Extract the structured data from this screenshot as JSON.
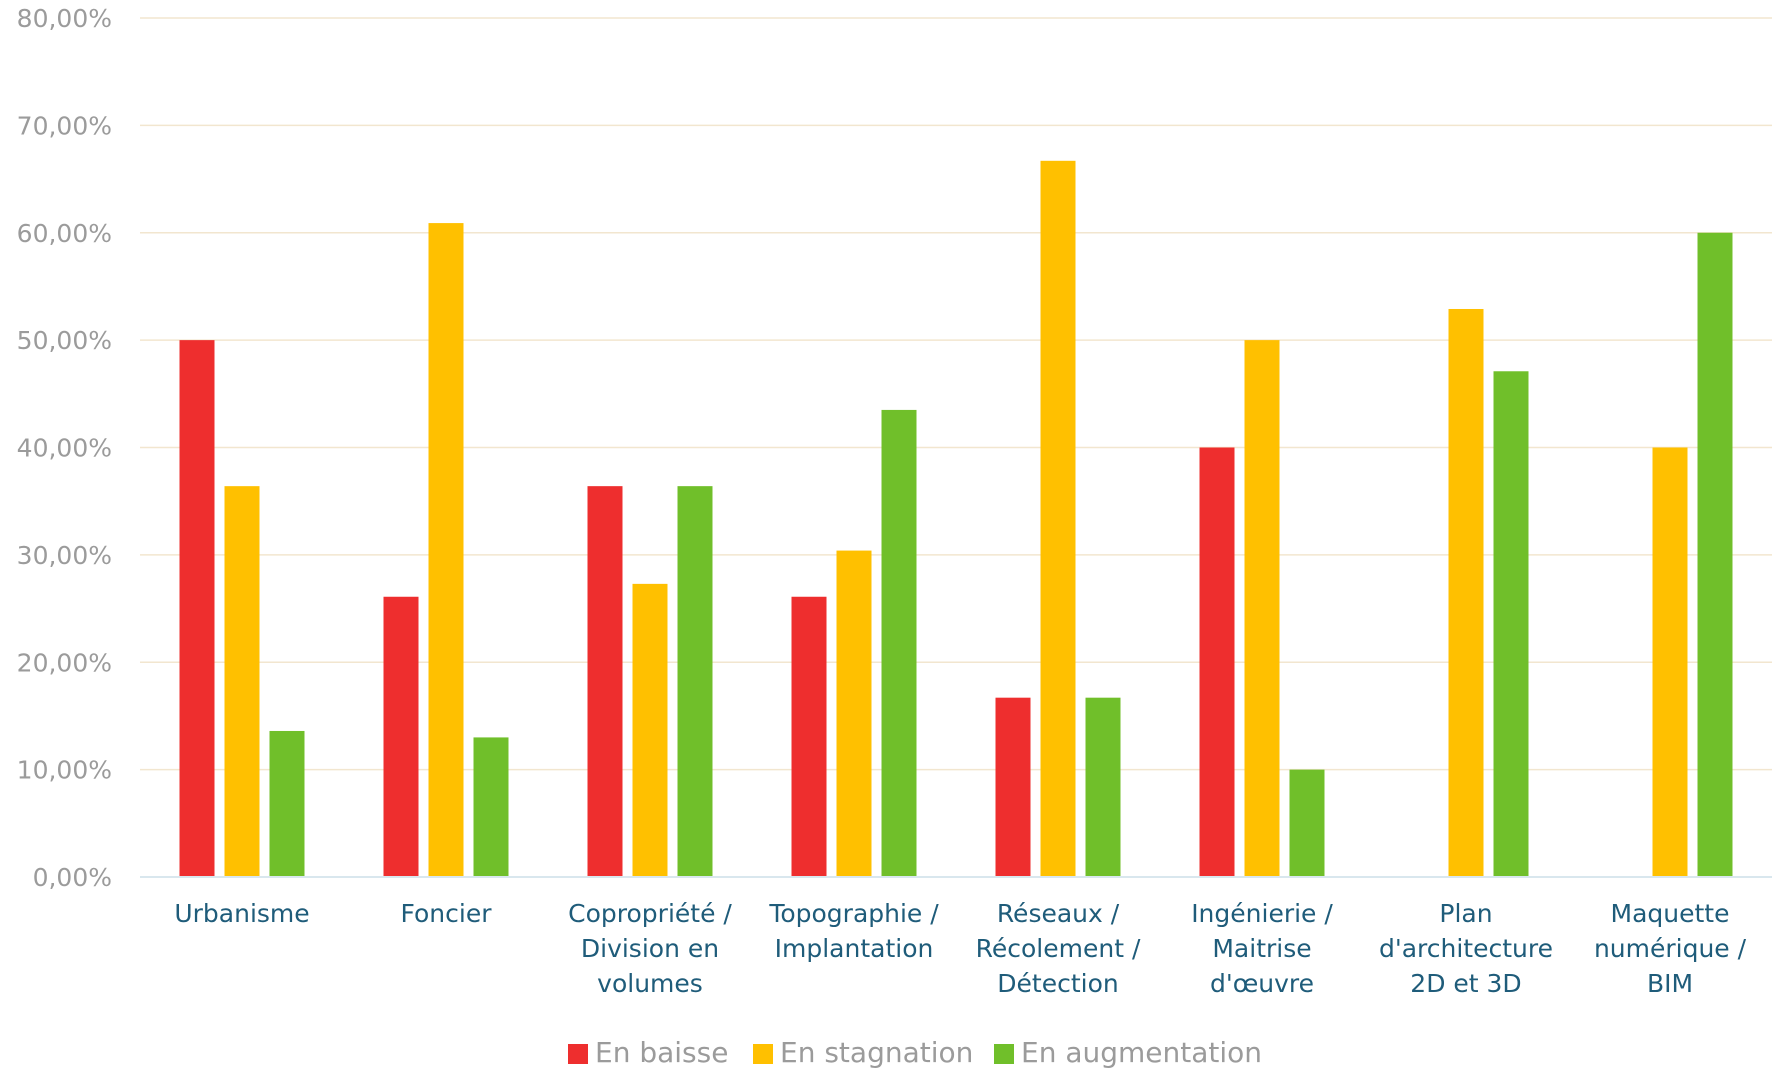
{
  "chart_data": {
    "type": "bar",
    "categories": [
      [
        "Urbanisme"
      ],
      [
        "Foncier"
      ],
      [
        "Copropriété /",
        "Division en",
        "volumes"
      ],
      [
        "Topographie /",
        "Implantation"
      ],
      [
        "Réseaux /",
        "Récolement /",
        "Détection"
      ],
      [
        "Ingénierie /",
        "Maitrise",
        "d'œuvre"
      ],
      [
        "Plan",
        "d'architecture",
        "2D et 3D"
      ],
      [
        "Maquette",
        "numérique /",
        "BIM"
      ]
    ],
    "series": [
      {
        "name": "En baisse",
        "color": "#ee2e2e",
        "values": [
          50.0,
          26.1,
          36.4,
          26.1,
          16.7,
          40.0,
          0,
          0
        ]
      },
      {
        "name": "En stagnation",
        "color": "#ffc000",
        "values": [
          36.4,
          60.9,
          27.3,
          30.4,
          66.7,
          50.0,
          52.9,
          40.0
        ]
      },
      {
        "name": "En augmentation",
        "color": "#70bf2a",
        "values": [
          13.6,
          13.0,
          36.4,
          43.5,
          16.7,
          10.0,
          47.1,
          60.0
        ]
      }
    ],
    "yticks": [
      "0,00%",
      "10,00%",
      "20,00%",
      "30,00%",
      "40,00%",
      "50,00%",
      "60,00%",
      "70,00%",
      "80,00%"
    ],
    "ylim": [
      0,
      80
    ],
    "grid": true,
    "legend_position": "bottom"
  }
}
